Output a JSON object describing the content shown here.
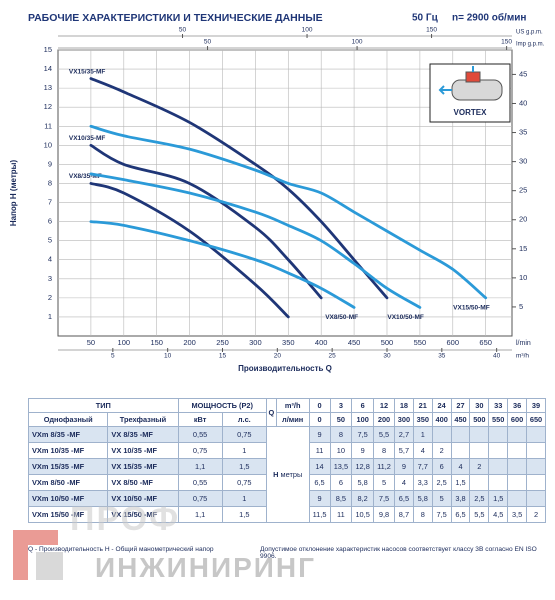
{
  "chart_data": {
    "type": "line",
    "title": "РАБОЧИЕ ХАРАКТЕРИСТИКИ И ТЕХНИЧЕСКИЕ ДАННЫЕ",
    "frequency": "50 Гц",
    "speed": "n= 2900 об/мин",
    "y_label": "Напор H (метры)",
    "x_label": "Производительность Q",
    "x_unit": "l/min",
    "x": [
      50,
      100,
      150,
      200,
      250,
      300,
      350,
      400,
      450,
      500,
      550,
      600,
      650
    ],
    "xlim": [
      0,
      690
    ],
    "xticks": [
      50,
      100,
      150,
      200,
      250,
      300,
      350,
      400,
      450,
      500,
      550,
      600,
      650
    ],
    "ylim": [
      0,
      15
    ],
    "yticks": [
      1,
      2,
      3,
      4,
      5,
      6,
      7,
      8,
      9,
      10,
      11,
      12,
      13,
      14,
      15
    ],
    "y2lim": [
      0,
      49.2
    ],
    "y2ticks": [
      5,
      10,
      15,
      20,
      25,
      30,
      35,
      40,
      45
    ],
    "top_axes": [
      {
        "label": "US g.p.m.",
        "lim": [
          0,
          182.3
        ],
        "ticks": [
          50,
          100,
          150
        ]
      },
      {
        "label": "Imp g.p.m.",
        "lim": [
          0,
          151.8
        ],
        "ticks": [
          50,
          100,
          150
        ]
      }
    ],
    "bottom_axis": {
      "label": "m³/h",
      "lim": [
        0,
        41.4
      ],
      "ticks": [
        5,
        10,
        15,
        20,
        25,
        30,
        35,
        40
      ]
    },
    "grid": true,
    "inset_label": "VORTEX",
    "series": [
      {
        "name": "VX8/35-MF",
        "color": "#1f3677",
        "values": [
          8,
          7.5,
          null,
          5.5,
          null,
          2.7,
          1,
          null,
          null,
          null,
          null,
          null,
          null
        ]
      },
      {
        "name": "VX10/35-MF",
        "color": "#1f3677",
        "values": [
          10,
          9,
          null,
          8,
          null,
          5.7,
          4,
          2,
          null,
          null,
          null,
          null,
          null
        ]
      },
      {
        "name": "VX15/35-MF",
        "color": "#1f3677",
        "values": [
          13.5,
          12.8,
          null,
          11.2,
          null,
          9,
          7.7,
          6,
          4,
          2,
          null,
          null,
          null
        ]
      },
      {
        "name": "VX8/50-MF",
        "color": "#2b9ad8",
        "values": [
          6,
          5.8,
          null,
          5,
          null,
          4,
          3.3,
          2.5,
          1.5,
          null,
          null,
          null,
          null
        ]
      },
      {
        "name": "VX10/50-MF",
        "color": "#2b9ad8",
        "values": [
          8.5,
          8.2,
          null,
          7.5,
          null,
          6.5,
          5.8,
          5,
          3.8,
          2.5,
          1.5,
          null,
          null
        ]
      },
      {
        "name": "VX15/50-MF",
        "color": "#2b9ad8",
        "values": [
          11,
          10.5,
          null,
          9.8,
          null,
          8.7,
          8,
          7.5,
          6.5,
          5.5,
          4.5,
          3.5,
          2
        ]
      }
    ]
  },
  "table": {
    "header": {
      "type": "ТИП",
      "power": "МОЩНОСТЬ (P2)",
      "single": "Однофазный",
      "three": "Трехфазный",
      "kw": "кВт",
      "hp": "л.с.",
      "q": "Q",
      "m3h": "m³/h",
      "lmin": "л/мин",
      "h": "H",
      "h_unit": "метры"
    },
    "q_m3h": [
      "0",
      "3",
      "6",
      "12",
      "18",
      "21",
      "24",
      "27",
      "30",
      "33",
      "36",
      "39"
    ],
    "q_lmin": [
      "0",
      "50",
      "100",
      "200",
      "300",
      "350",
      "400",
      "450",
      "500",
      "550",
      "600",
      "650"
    ],
    "rows": [
      {
        "single": "VXm 8/35 -MF",
        "three": "VX 8/35 -MF",
        "kw": "0,55",
        "hp": "0,75",
        "h": [
          "9",
          "8",
          "7,5",
          "5,5",
          "2,7",
          "1"
        ]
      },
      {
        "single": "VXm 10/35 -MF",
        "three": "VX 10/35 -MF",
        "kw": "0,75",
        "hp": "1",
        "h": [
          "11",
          "10",
          "9",
          "8",
          "5,7",
          "4",
          "2"
        ]
      },
      {
        "single": "VXm 15/35 -MF",
        "three": "VX 15/35 -MF",
        "kw": "1,1",
        "hp": "1,5",
        "h": [
          "14",
          "13,5",
          "12,8",
          "11,2",
          "9",
          "7,7",
          "6",
          "4",
          "2"
        ]
      },
      {
        "single": "VXm 8/50 -MF",
        "three": "VX 8/50 -MF",
        "kw": "0,55",
        "hp": "0,75",
        "h": [
          "6,5",
          "6",
          "5,8",
          "5",
          "4",
          "3,3",
          "2,5",
          "1,5"
        ]
      },
      {
        "single": "VXm 10/50 -MF",
        "three": "VX 10/50 -MF",
        "kw": "0,75",
        "hp": "1",
        "h": [
          "9",
          "8,5",
          "8,2",
          "7,5",
          "6,5",
          "5,8",
          "5",
          "3,8",
          "2,5",
          "1,5"
        ]
      },
      {
        "single": "VXm 15/50 -MF",
        "three": "VX 15/50 -MF",
        "kw": "1,1",
        "hp": "1,5",
        "h": [
          "11,5",
          "11",
          "10,5",
          "9,8",
          "8,7",
          "8",
          "7,5",
          "6,5",
          "5,5",
          "4,5",
          "3,5",
          "2"
        ]
      }
    ]
  },
  "footer": {
    "legend": "Q - Производительность   H - Общий манометрический напор",
    "note": "Допустимое отклонение характеристик насосов соответствует классу 3B согласно EN ISO 9906."
  },
  "watermark": {
    "line1": "ПРОФ",
    "line2": "ИНЖИНИРИНГ"
  }
}
